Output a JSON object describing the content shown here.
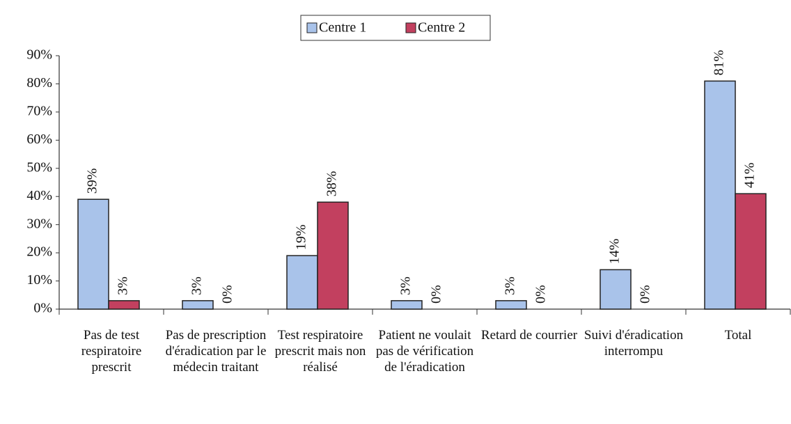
{
  "chart_data": {
    "type": "bar",
    "categories": [
      "Pas de test respiratoire prescrit",
      "Pas de prescription d'éradication par le médecin traitant",
      "Test respiratoire prescrit mais non réalisé",
      "Patient ne voulait pas de vérification de l'éradication",
      "Retard de courrier",
      "Suivi d'éradication interrompu",
      "Total"
    ],
    "series": [
      {
        "name": "Centre 1",
        "color": "#a9c3ea",
        "values": [
          39,
          3,
          19,
          3,
          3,
          14,
          81
        ],
        "value_labels": [
          "39%",
          "3%",
          "19%",
          "3%",
          "3%",
          "14%",
          "81%"
        ]
      },
      {
        "name": "Centre 2",
        "color": "#c2405f",
        "values": [
          3,
          0,
          38,
          0,
          0,
          0,
          41
        ],
        "value_labels": [
          "3%",
          "0%",
          "38%",
          "0%",
          "0%",
          "0%",
          "41%"
        ]
      }
    ],
    "ylim": [
      0,
      90
    ],
    "yticks": [
      {
        "value": 0,
        "label": "0%"
      },
      {
        "value": 10,
        "label": "10%"
      },
      {
        "value": 20,
        "label": "20%"
      },
      {
        "value": 30,
        "label": "30%"
      },
      {
        "value": 40,
        "label": "40%"
      },
      {
        "value": 50,
        "label": "50%"
      },
      {
        "value": 60,
        "label": "60%"
      },
      {
        "value": 70,
        "label": "70%"
      },
      {
        "value": 80,
        "label": "80%"
      },
      {
        "value": 90,
        "label": "90%"
      }
    ],
    "legend": "top"
  }
}
